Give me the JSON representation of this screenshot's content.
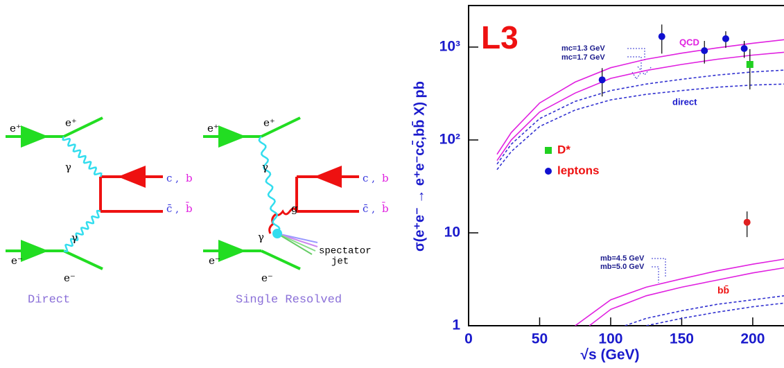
{
  "diagrams": [
    {
      "caption": "Direct",
      "labels": [
        "e⁺",
        "e⁺",
        "γ",
        "γ",
        "e⁻",
        "e⁻",
        "c ,",
        "b",
        "c̄ ,",
        "b̄"
      ]
    },
    {
      "caption": "Single Resolved",
      "labels": [
        "e⁺",
        "e⁺",
        "γ",
        "g",
        "γ",
        "e⁻",
        "e⁻",
        "c ,",
        "b",
        "c̄ ,",
        "b̄",
        "spectator",
        "jet"
      ]
    }
  ],
  "chart_data": {
    "type": "scatter",
    "title": "L3",
    "y_label": "σ(e⁺e⁻ → e⁺e⁻cc̄,bb̄ X) pb",
    "x_label": "√s (GeV)",
    "xlim": [
      0,
      222
    ],
    "ylim": [
      1,
      2800
    ],
    "log_y": true,
    "xticks": [
      0,
      50,
      100,
      150,
      200
    ],
    "yticks": [
      1,
      10,
      {
        "value": 100,
        "label": "10²"
      },
      {
        "value": 1000,
        "label": "10³"
      }
    ],
    "annotations": [
      "QCD",
      "direct",
      "mc=1.3 GeV",
      "mc=1.7 GeV",
      "mb=4.5 GeV",
      "mb=5.0 GeV",
      "bb̄"
    ],
    "series": [
      {
        "kind": "line",
        "color": "#e020e0",
        "dashed": false,
        "x": [
          20,
          30,
          50,
          75,
          100,
          125,
          150,
          175,
          200,
          222
        ],
        "values": [
          70,
          120,
          250,
          420,
          600,
          740,
          860,
          980,
          1100,
          1200
        ]
      },
      {
        "kind": "line",
        "color": "#e020e0",
        "dashed": false,
        "x": [
          20,
          30,
          50,
          75,
          100,
          125,
          150,
          175,
          200,
          222
        ],
        "values": [
          60,
          100,
          200,
          320,
          460,
          560,
          650,
          740,
          820,
          880
        ]
      },
      {
        "kind": "line",
        "color": "#3030d0",
        "dashed": true,
        "x": [
          20,
          30,
          50,
          75,
          100,
          125,
          150,
          175,
          200,
          222
        ],
        "values": [
          55,
          90,
          170,
          260,
          340,
          400,
          450,
          500,
          540,
          565
        ]
      },
      {
        "kind": "line",
        "color": "#3030d0",
        "dashed": true,
        "x": [
          20,
          30,
          50,
          75,
          100,
          125,
          150,
          175,
          200,
          222
        ],
        "values": [
          48,
          75,
          140,
          210,
          270,
          310,
          340,
          370,
          390,
          400
        ]
      },
      {
        "kind": "line",
        "color": "#e020e0",
        "dashed": false,
        "x": [
          75,
          100,
          125,
          150,
          175,
          200,
          222
        ],
        "values": [
          1.0,
          1.9,
          2.6,
          3.2,
          3.9,
          4.6,
          5.2
        ]
      },
      {
        "kind": "line",
        "color": "#e020e0",
        "dashed": false,
        "x": [
          85,
          100,
          125,
          150,
          175,
          200,
          222
        ],
        "values": [
          1.0,
          1.5,
          2.1,
          2.6,
          3.1,
          3.7,
          4.2
        ]
      },
      {
        "kind": "line",
        "color": "#3030d0",
        "dashed": true,
        "x": [
          110,
          125,
          150,
          175,
          200,
          222
        ],
        "values": [
          1.0,
          1.2,
          1.45,
          1.7,
          1.9,
          2.1
        ]
      },
      {
        "kind": "line",
        "color": "#3030d0",
        "dashed": true,
        "x": [
          125,
          150,
          175,
          200,
          222
        ],
        "values": [
          1.0,
          1.2,
          1.4,
          1.6,
          1.75
        ]
      },
      {
        "kind": "points",
        "name": "D*",
        "marker": "square",
        "color": "#20d020",
        "x": [
          198
        ],
        "values": [
          650
        ],
        "errors": [
          300
        ]
      },
      {
        "kind": "points",
        "name": "leptons",
        "marker": "circle",
        "color": "#1010d0",
        "x": [
          94,
          136,
          166,
          181,
          194
        ],
        "values": [
          444,
          1300,
          915,
          1230,
          965
        ],
        "errors": [
          150,
          450,
          250,
          250,
          200
        ]
      },
      {
        "kind": "points",
        "marker": "circle",
        "color": "#e02020",
        "x": [
          196
        ],
        "values": [
          13
        ],
        "errors": [
          4
        ]
      }
    ]
  }
}
